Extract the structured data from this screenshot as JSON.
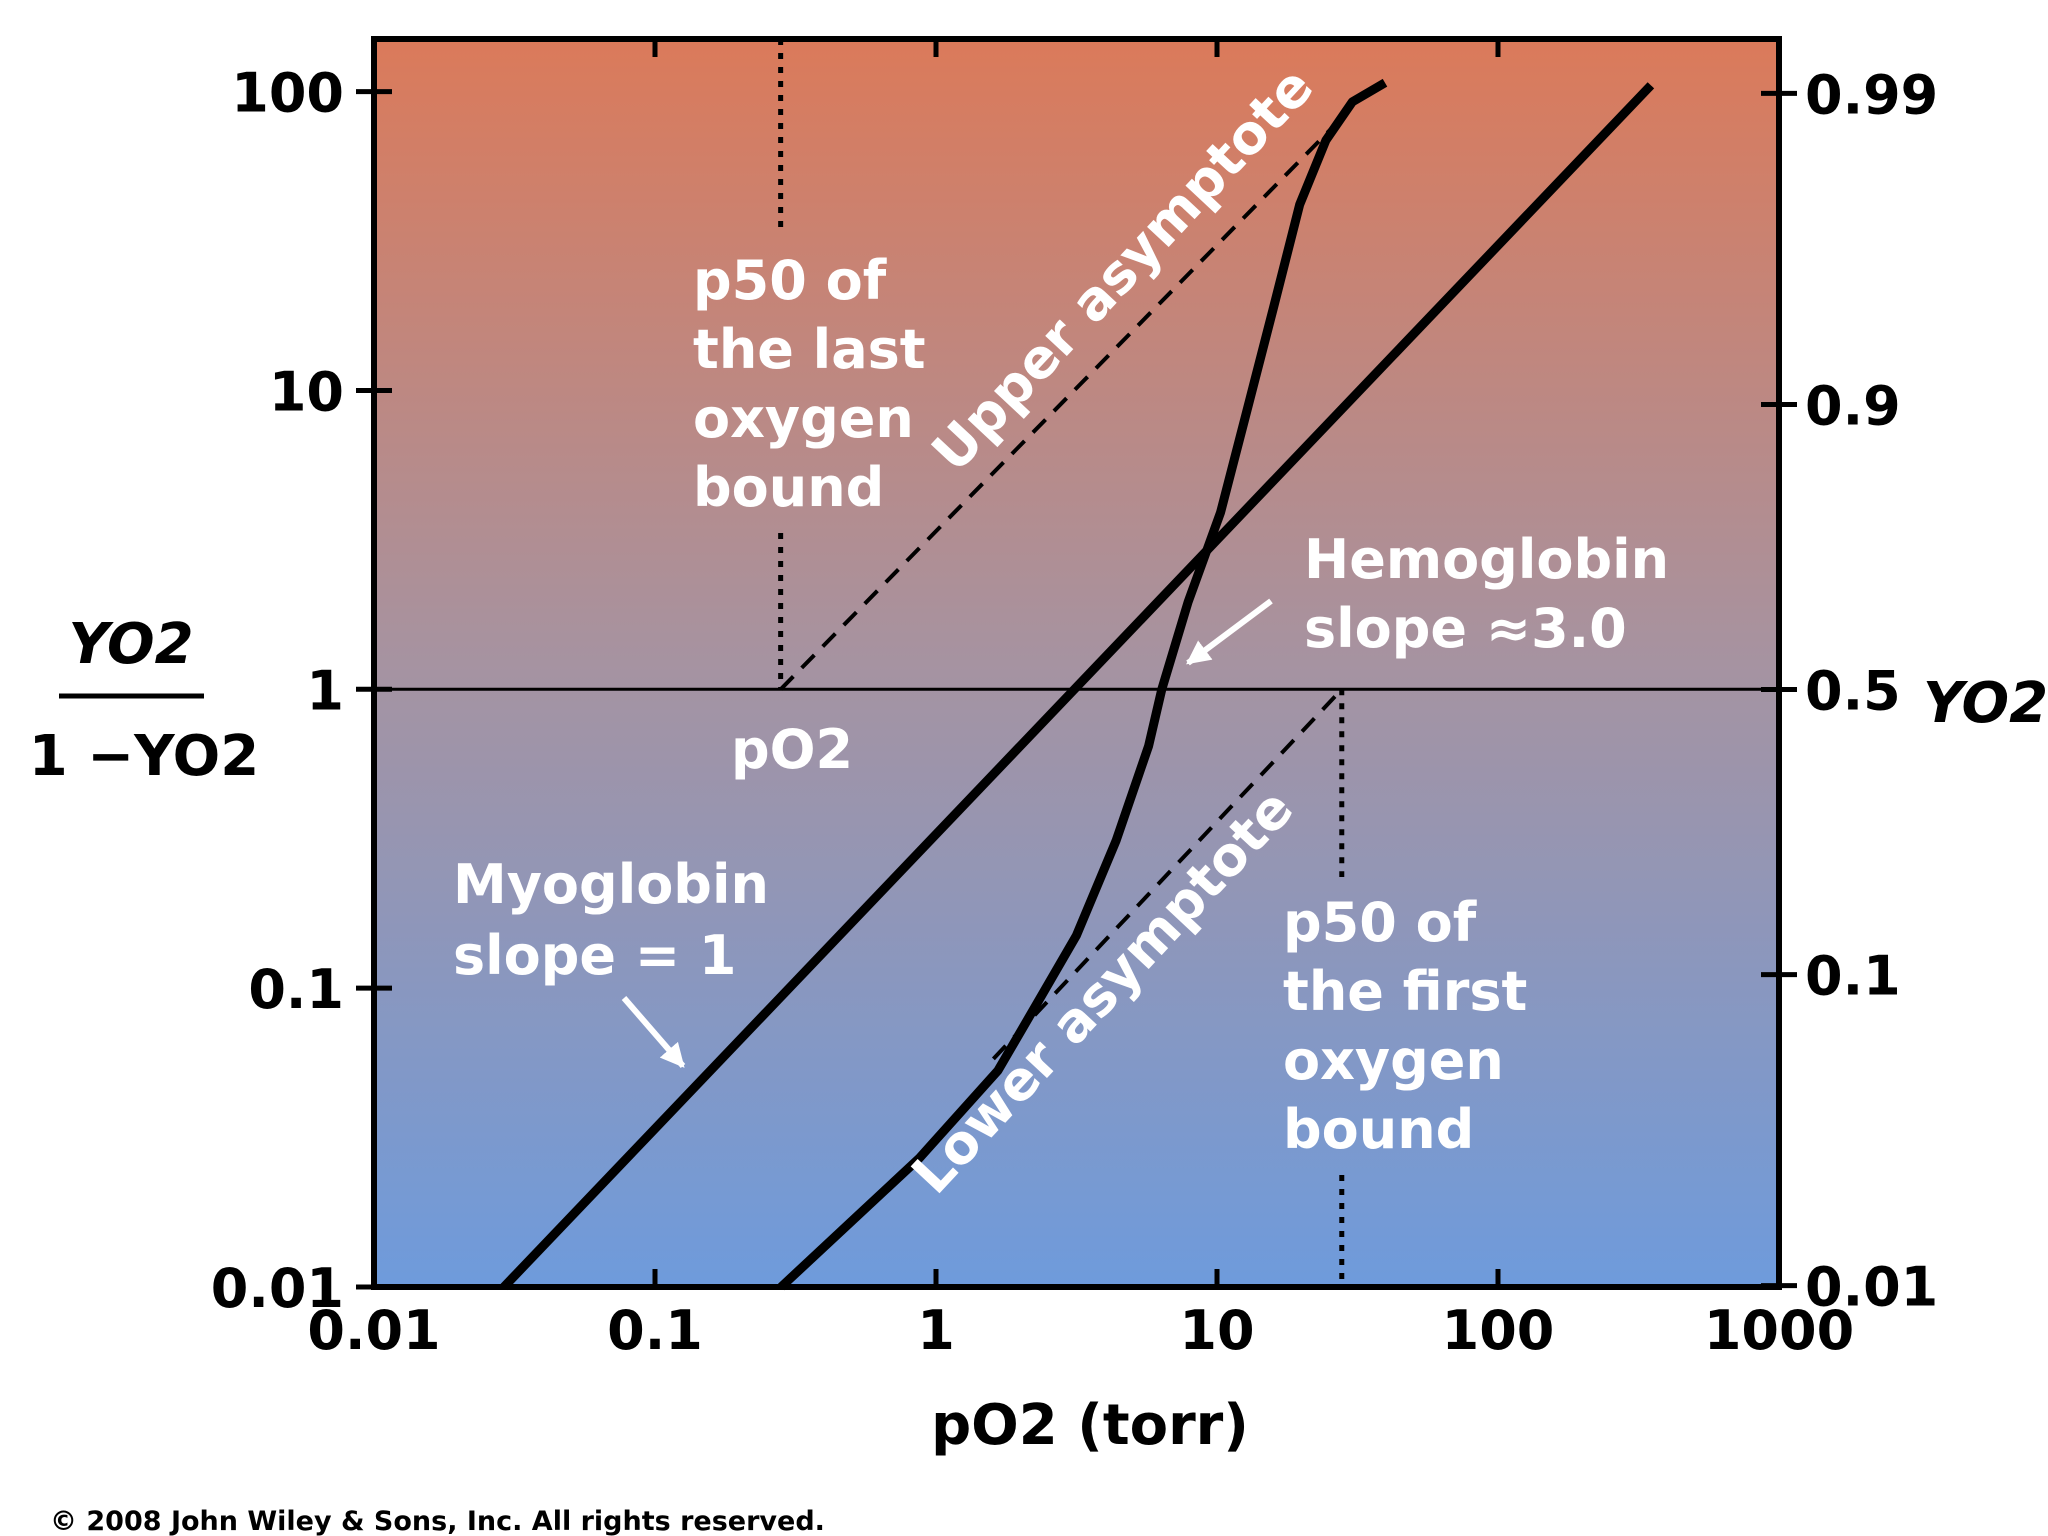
{
  "chart_data": {
    "type": "line",
    "xlabel": "pO2 (torr)",
    "ylabel": {
      "numerator": "YO2",
      "denominator": "1 −YO2"
    },
    "y2label": "YO2",
    "xscale": "log",
    "yscale": "log",
    "y2scale": "logit",
    "xlim": [
      0.01,
      1000
    ],
    "xticks": [
      0.01,
      0.1,
      1,
      10,
      100,
      1000
    ],
    "ylim": [
      0.01,
      150
    ],
    "yticks": [
      0.01,
      0.1,
      1,
      10,
      100
    ],
    "y2lim": [
      0.0099,
      0.9934
    ],
    "y2ticks": [
      0.01,
      0.1,
      0.5,
      0.9,
      0.99
    ],
    "hlines": [
      1
    ],
    "vlines": [
      {
        "x": 0.28,
        "side": "above",
        "label": [
          "p50 of",
          "the last",
          "oxygen",
          "bound"
        ]
      },
      {
        "x": 27.8,
        "side": "below",
        "label": [
          "p50 of",
          "the first",
          "oxygen",
          "bound"
        ]
      }
    ],
    "point_label": "pO2",
    "series": [
      {
        "name": "Myoglobin",
        "note": "slope = 1",
        "color": "#000000",
        "dash": false,
        "x": [
          0.029,
          350
        ],
        "values": [
          0.01,
          105
        ]
      },
      {
        "name": "Hemoglobin",
        "note": "slope ≈3.0",
        "color": "#000000",
        "dash": false,
        "x": [
          0.281,
          0.508,
          0.869,
          1.66,
          2.29,
          3.16,
          4.37,
          5.71,
          6.36,
          7.89,
          10.3,
          12.8,
          15.9,
          19.7,
          24.4,
          30.3,
          39.6
        ],
        "values": [
          0.01,
          0.0168,
          0.0269,
          0.053,
          0.089,
          0.15,
          0.311,
          0.646,
          1,
          1.96,
          3.91,
          8.6,
          19,
          41.9,
          68.7,
          92.4,
          107
        ]
      },
      {
        "name": "Upper asymptote",
        "color": "#000000",
        "dash": true,
        "x": [
          0.28,
          25.8
        ],
        "values": [
          1,
          76
        ]
      },
      {
        "name": "Lower asymptote",
        "color": "#000000",
        "dash": true,
        "x": [
          1.6,
          27.8
        ],
        "values": [
          0.058,
          1
        ]
      }
    ],
    "copyright": "© 2008 John Wiley & Sons, Inc. All rights reserved."
  }
}
